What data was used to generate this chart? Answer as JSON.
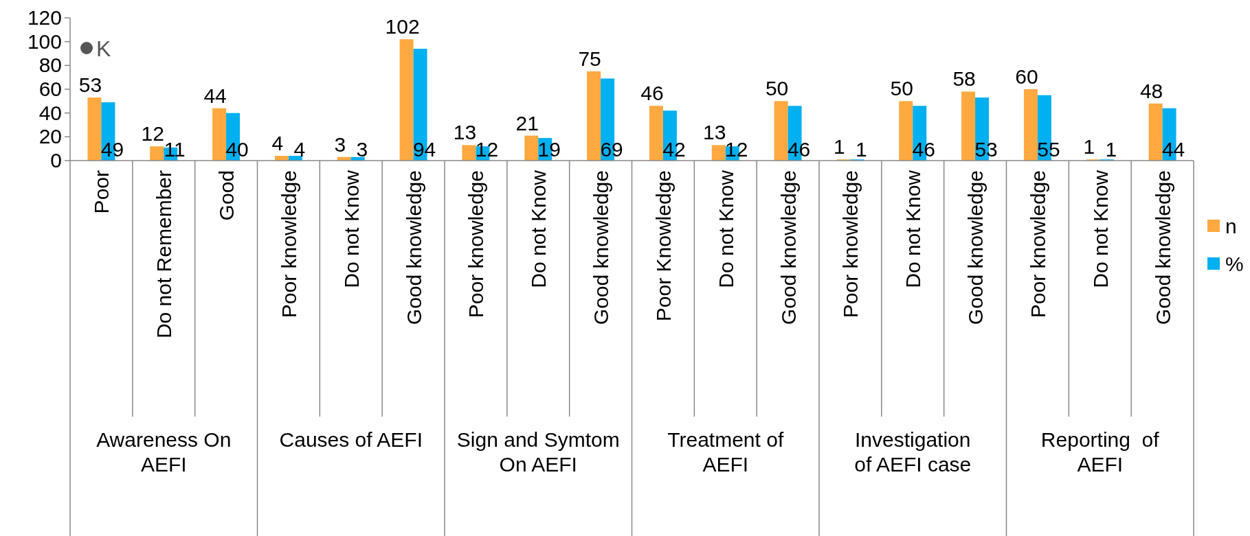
{
  "chart_data": {
    "type": "bar",
    "categories": [
      "Poor",
      "Do not Remember",
      "Good",
      "Poor knowledge",
      "Do not Know",
      "Good knowledge",
      "Poor knowledge",
      "Do not Know",
      "Good knowledge",
      "Poor Knowledge",
      "Do not Know",
      "Good knowledge",
      "Poor knowledge",
      "Do not Know",
      "Good knowledge",
      "Poor knowledge",
      "Do not Know",
      "Good knowledge"
    ],
    "series": [
      {
        "name": "n",
        "color": "#ffa940",
        "values": [
          53,
          12,
          44,
          4,
          3,
          102,
          13,
          21,
          75,
          46,
          13,
          50,
          1,
          50,
          58,
          60,
          1,
          48
        ]
      },
      {
        "name": "%",
        "color": "#00b0f0",
        "values": [
          49,
          11,
          40,
          4,
          3,
          94,
          12,
          19,
          69,
          42,
          12,
          46,
          1,
          46,
          53,
          55,
          1,
          44
        ]
      }
    ],
    "annotations": [
      "Awareness On AEFI",
      "Causes of AEFI",
      "Sign and Symtom On AEFI",
      "Treatment of AEFI",
      "Investigation of AEFI case",
      "Reporting  of AEFI",
      "K"
    ],
    "ylim": [
      0,
      120
    ],
    "yticks": [
      0,
      20,
      40,
      60,
      80,
      100,
      120
    ],
    "grid": false,
    "legend": "right",
    "data_labels": true
  }
}
